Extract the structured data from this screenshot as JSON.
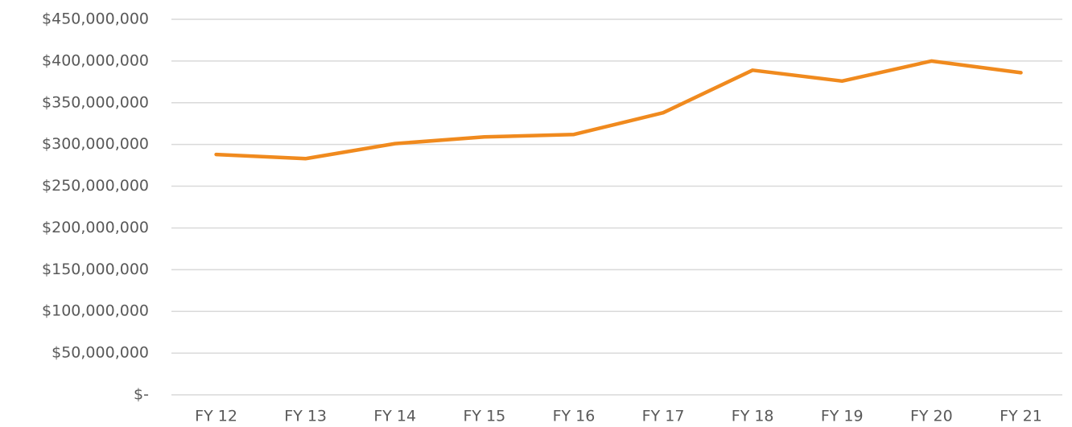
{
  "chart_data": {
    "type": "line",
    "categories": [
      "FY 12",
      "FY 13",
      "FY 14",
      "FY 15",
      "FY 16",
      "FY 17",
      "FY 18",
      "FY 19",
      "FY 20",
      "FY 21"
    ],
    "series": [
      {
        "color": "#f08a1e",
        "values": [
          288000000,
          283000000,
          301000000,
          309000000,
          312000000,
          338000000,
          389000000,
          376000000,
          400000000,
          386000000
        ]
      }
    ],
    "ylim": [
      0,
      450000000
    ],
    "yticks": [
      {
        "value": 0,
        "label": "$-"
      },
      {
        "value": 50000000,
        "label": "$50,000,000"
      },
      {
        "value": 100000000,
        "label": "$100,000,000"
      },
      {
        "value": 150000000,
        "label": "$150,000,000"
      },
      {
        "value": 200000000,
        "label": "$200,000,000"
      },
      {
        "value": 250000000,
        "label": "$250,000,000"
      },
      {
        "value": 300000000,
        "label": "$300,000,000"
      },
      {
        "value": 350000000,
        "label": "$350,000,000"
      },
      {
        "value": 400000000,
        "label": "$400,000,000"
      },
      {
        "value": 450000000,
        "label": "$450,000,000"
      }
    ],
    "grid": true
  }
}
